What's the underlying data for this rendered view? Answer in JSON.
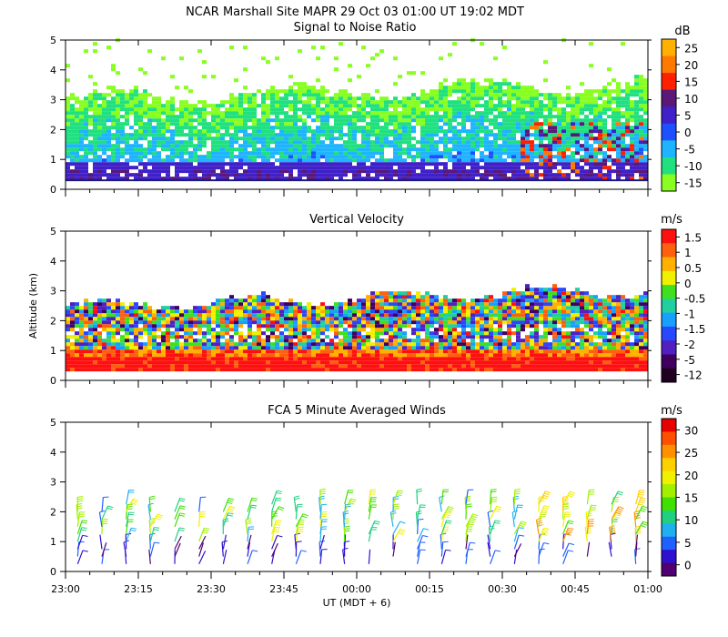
{
  "header": {
    "line1": "NCAR Marshall Site  MAPR 29 Oct 03  01:00 UT  19:02  MDT"
  },
  "shared": {
    "xlabel": "UT  (MDT + 6)",
    "ylabel": "Altitude (km)",
    "x_ticks": [
      "23:00",
      "23:15",
      "23:30",
      "23:45",
      "00:00",
      "00:15",
      "00:30",
      "00:45",
      "01:00"
    ],
    "y_ticks": [
      "0",
      "1",
      "2",
      "3",
      "4",
      "5"
    ]
  },
  "chart_data": [
    {
      "type": "heatmap",
      "title": "Signal to Noise Ratio",
      "units": "dB",
      "xlabel": "UT  (MDT + 6)",
      "ylabel": "Altitude (km)",
      "xlim": [
        "23:00",
        "01:00"
      ],
      "ylim": [
        0,
        5
      ],
      "colorbar": {
        "labels": [
          "25",
          "20",
          "15",
          "10",
          "5",
          "0",
          "-5",
          "-10",
          "-15"
        ],
        "colors": [
          "#ffb000",
          "#ff7800",
          "#ff2000",
          "#5a1878",
          "#4020c8",
          "#1e50ff",
          "#1eb4ff",
          "#20e080",
          "#88ff20"
        ]
      },
      "description_rows": [
        {
          "alt_km": 0.5,
          "level_db": 5
        },
        {
          "alt_km": 1.0,
          "level_db": -5
        },
        {
          "alt_km": 1.5,
          "level_db": -10
        },
        {
          "alt_km": 2.0,
          "level_db": -10
        },
        {
          "alt_km": 2.5,
          "level_db": -15
        },
        {
          "alt_km": 3.0,
          "level_db": -15
        }
      ]
    },
    {
      "type": "heatmap",
      "title": "Vertical Velocity",
      "units": "m/s",
      "xlabel": "UT  (MDT + 6)",
      "ylabel": "Altitude (km)",
      "xlim": [
        "23:00",
        "01:00"
      ],
      "ylim": [
        0,
        5
      ],
      "colorbar": {
        "labels": [
          "1.5",
          "1",
          "0.5",
          "0",
          "-0.5",
          "-1",
          "-1.5",
          "-2",
          "-5",
          "-12"
        ],
        "colors": [
          "#ff1010",
          "#ff6010",
          "#ffb000",
          "#f0f000",
          "#40e020",
          "#20d0a0",
          "#18a0ff",
          "#2848ff",
          "#5020c0",
          "#400060",
          "#200020"
        ]
      }
    },
    {
      "type": "scatter",
      "title": "FCA 5 Minute Averaged Winds",
      "units": "m/s",
      "xlabel": "UT  (MDT + 6)",
      "ylabel": "Altitude (km)",
      "xlim": [
        "23:00",
        "01:00"
      ],
      "ylim": [
        0,
        5
      ],
      "colorbar": {
        "labels": [
          "30",
          "25",
          "20",
          "15",
          "10",
          "5",
          "0"
        ],
        "colors": [
          "#e80000",
          "#ff5000",
          "#ff9000",
          "#ffd000",
          "#f0f000",
          "#a0f000",
          "#40e000",
          "#20d080",
          "#20b0f0",
          "#2060ff",
          "#3010d0",
          "#500070"
        ]
      },
      "barb_altitudes_km": [
        0.25,
        0.5,
        0.75,
        1.0,
        1.25,
        1.5,
        1.75,
        2.0,
        2.25
      ],
      "barb_interval_minutes": 5
    }
  ]
}
